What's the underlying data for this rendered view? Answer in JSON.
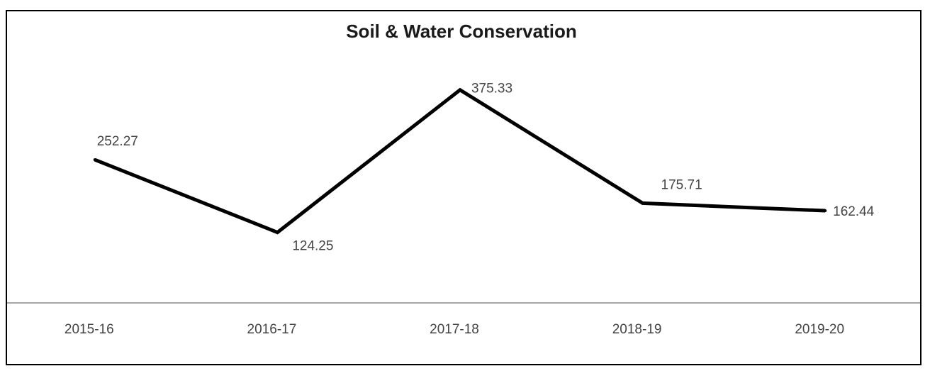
{
  "chart_data": {
    "type": "line",
    "title": "Soil & Water Conservation",
    "xlabel": "",
    "ylabel": "",
    "categories": [
      "2015-16",
      "2016-17",
      "2017-18",
      "2018-19",
      "2019-20"
    ],
    "series": [
      {
        "values": [
          252.27,
          124.25,
          375.33,
          175.71,
          162.44
        ],
        "data_labels": [
          "252.27",
          "124.25",
          "375.33",
          "175.71",
          "162.44"
        ]
      }
    ],
    "ylim": [
      0,
      420
    ],
    "grid": false,
    "legend": "none",
    "y_axis_visible": false,
    "colors": {
      "line": "#000000",
      "axis": "#a6a6a6",
      "text": "#444444",
      "title": "#1a1a1a",
      "border": "#000000"
    }
  }
}
